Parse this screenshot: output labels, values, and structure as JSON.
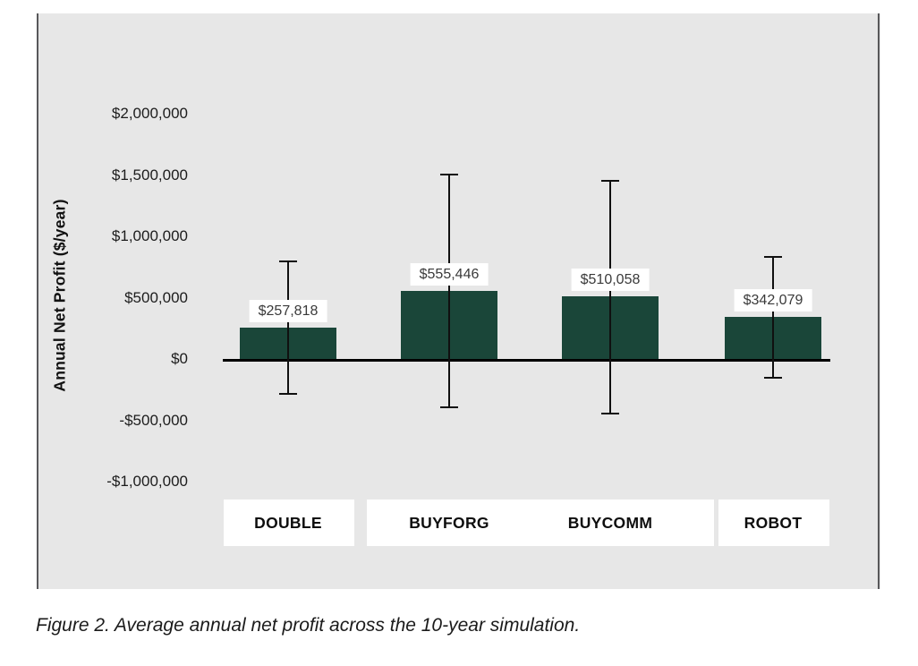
{
  "figure": {
    "caption": "Figure 2. Average annual net profit across the 10-year simulation."
  },
  "chart_data": {
    "type": "bar",
    "title": "",
    "xlabel": "",
    "ylabel": "Annual Net Profit ($/year)",
    "categories": [
      "DOUBLE",
      "BUYFORG",
      "BUYCOMM",
      "ROBOT"
    ],
    "values": [
      257818,
      555446,
      510058,
      342079
    ],
    "value_labels": [
      "$257,818",
      "$555,446",
      "$510,058",
      "$342,079"
    ],
    "error_upper": [
      800000,
      1510000,
      1460000,
      840000
    ],
    "error_lower": [
      -290000,
      -400000,
      -450000,
      -160000
    ],
    "yticks": [
      2000000,
      1500000,
      1000000,
      500000,
      0,
      -500000,
      -1000000
    ],
    "ytick_labels": [
      "$2,000,000",
      "$1,500,000",
      "$1,000,000",
      "$500,000",
      "$0",
      "-$500,000",
      "-$1,000,000"
    ],
    "ylim": [
      -1900000,
      2800000
    ],
    "grid": false,
    "legend": false,
    "colors": {
      "bar": "#1a4639",
      "plot_bg": "#e7e7e7",
      "error_bar": "#101010",
      "axis_line": "#000000",
      "value_label_bg": "#ffffff",
      "category_label_bg": "#ffffff"
    }
  }
}
